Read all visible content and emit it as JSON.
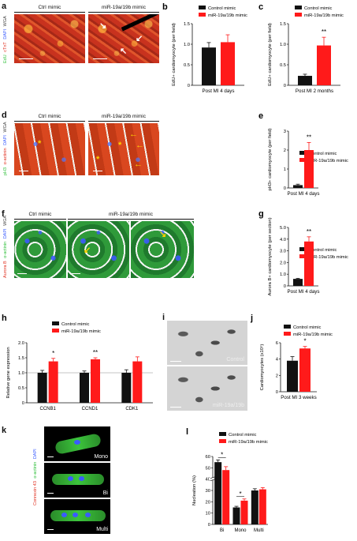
{
  "panels": {
    "a": {
      "letter": "a",
      "ctrl": "Ctrl mimic",
      "treat": "miR-19a/19b mimic",
      "stain": [
        "EdU",
        "cTnT",
        "DAPI",
        "WGA"
      ]
    },
    "d": {
      "letter": "d",
      "ctrl": "Ctrl mimic",
      "treat": "miR-19a/19b mimic",
      "stain": [
        "pH3",
        "α-actinin",
        "DAPI",
        "WGA"
      ]
    },
    "f": {
      "letter": "f",
      "ctrl": "Ctrl mimic",
      "treat": "miR-19a/19b mimic",
      "stain": [
        "Aurora B",
        "α-actinin",
        "DAPI",
        "WGA"
      ]
    },
    "i": {
      "letter": "i",
      "top_label": "Control",
      "bottom_label": "miR-19a/19b"
    },
    "k": {
      "letter": "k",
      "stain": [
        "Connexin 43",
        "α-actinin",
        "DAPI"
      ],
      "labels": [
        "Mono",
        "Bi",
        "Multi"
      ]
    }
  },
  "legend": {
    "control": "Control mimic",
    "treated": "miR-19a/19b mimic",
    "control_color": "#111111",
    "treated_color": "#ff1a1a"
  },
  "chart_data": [
    {
      "id": "b",
      "type": "bar",
      "letter": "b",
      "ylabel": "EdU+ cardiomyocyte (per field)",
      "xlabel": "Post MI 4 days",
      "ylim": [
        0,
        1.5
      ],
      "yticks": [
        "0",
        "0.5",
        "1.0",
        "1.5"
      ],
      "series": [
        {
          "name": "Control mimic",
          "values": [
            0.92
          ],
          "errors": [
            0.12
          ]
        },
        {
          "name": "miR-19a/19b mimic",
          "values": [
            1.05
          ],
          "errors": [
            0.18
          ]
        }
      ]
    },
    {
      "id": "c",
      "type": "bar",
      "letter": "c",
      "ylabel": "EdU+ cardiomyocyte (per field)",
      "xlabel": "Post MI 2 months",
      "ylim": [
        0,
        1.5
      ],
      "yticks": [
        "0",
        "0.5",
        "1.0",
        "1.5"
      ],
      "series": [
        {
          "name": "Control mimic",
          "values": [
            0.23
          ],
          "errors": [
            0.04
          ]
        },
        {
          "name": "miR-19a/19b mimic",
          "values": [
            0.97
          ],
          "errors": [
            0.2
          ]
        }
      ],
      "annotations": [
        "**"
      ]
    },
    {
      "id": "e",
      "type": "bar",
      "letter": "e",
      "ylabel": "pH3+ cardiomyocyte (per field)",
      "xlabel": "Post MI 4 days",
      "ylim": [
        0,
        3
      ],
      "yticks": [
        "0",
        "1",
        "2",
        "3"
      ],
      "series": [
        {
          "name": "Control mimic",
          "values": [
            0.15
          ],
          "errors": [
            0.05
          ]
        },
        {
          "name": "miR-19a/19b mimic",
          "values": [
            2.0
          ],
          "errors": [
            0.4
          ]
        }
      ],
      "annotations": [
        "**"
      ]
    },
    {
      "id": "g",
      "type": "bar",
      "letter": "g",
      "ylabel": "Aurora B+ cardiomyocyte (per section)",
      "xlabel": "Post MI 4 days",
      "ylim": [
        0,
        5
      ],
      "yticks": [
        "0",
        "1.0",
        "2.0",
        "3.0",
        "4.0",
        "5.0"
      ],
      "series": [
        {
          "name": "Control mimic",
          "values": [
            0.6
          ],
          "errors": [
            0.05
          ]
        },
        {
          "name": "miR-19a/19b mimic",
          "values": [
            3.8
          ],
          "errors": [
            0.4
          ]
        }
      ],
      "annotations": [
        "**"
      ]
    },
    {
      "id": "h",
      "type": "bar",
      "letter": "h",
      "ylabel": "Relative gene expression",
      "categories": [
        "CCNB1",
        "CCND1",
        "CDK1"
      ],
      "ylim": [
        0,
        2.0
      ],
      "yticks": [
        "0",
        "0.5",
        "1.0",
        "1.5",
        "2.0"
      ],
      "series": [
        {
          "name": "Control mimic",
          "values": [
            1.0,
            1.0,
            1.0
          ],
          "errors": [
            0.08,
            0.06,
            0.1
          ]
        },
        {
          "name": "miR-19a/19b mimic",
          "values": [
            1.38,
            1.45,
            1.38
          ],
          "errors": [
            0.1,
            0.05,
            0.15
          ]
        }
      ],
      "annotations": [
        "*",
        "**",
        ""
      ]
    },
    {
      "id": "j",
      "type": "bar",
      "letter": "j",
      "ylabel": "Cardiomyocytes (x10⁶)",
      "xlabel": "Post MI 3 weeks",
      "ylim": [
        0,
        6
      ],
      "yticks": [
        "0",
        "2",
        "4",
        "6"
      ],
      "series": [
        {
          "name": "Control mimic",
          "values": [
            3.8
          ],
          "errors": [
            0.5
          ]
        },
        {
          "name": "miR-19a/19b mimic",
          "values": [
            5.3
          ],
          "errors": [
            0.25
          ]
        }
      ],
      "annotations": [
        "*"
      ]
    },
    {
      "id": "l",
      "type": "bar",
      "letter": "l",
      "ylabel": "Nucleation (%)",
      "categories": [
        "Bi",
        "Mono",
        "Multi"
      ],
      "ylim": [
        0,
        60
      ],
      "yticks": [
        "0",
        "10",
        "20",
        "30",
        "40",
        "50",
        "60"
      ],
      "series": [
        {
          "name": "Control mimic",
          "values": [
            55,
            15,
            30
          ],
          "errors": [
            2,
            1,
            1.5
          ]
        },
        {
          "name": "miR-19a/19b mimic",
          "values": [
            48,
            21,
            31
          ],
          "errors": [
            3,
            1.5,
            1.5
          ]
        }
      ],
      "annotations": [
        "*",
        "*",
        ""
      ]
    }
  ]
}
